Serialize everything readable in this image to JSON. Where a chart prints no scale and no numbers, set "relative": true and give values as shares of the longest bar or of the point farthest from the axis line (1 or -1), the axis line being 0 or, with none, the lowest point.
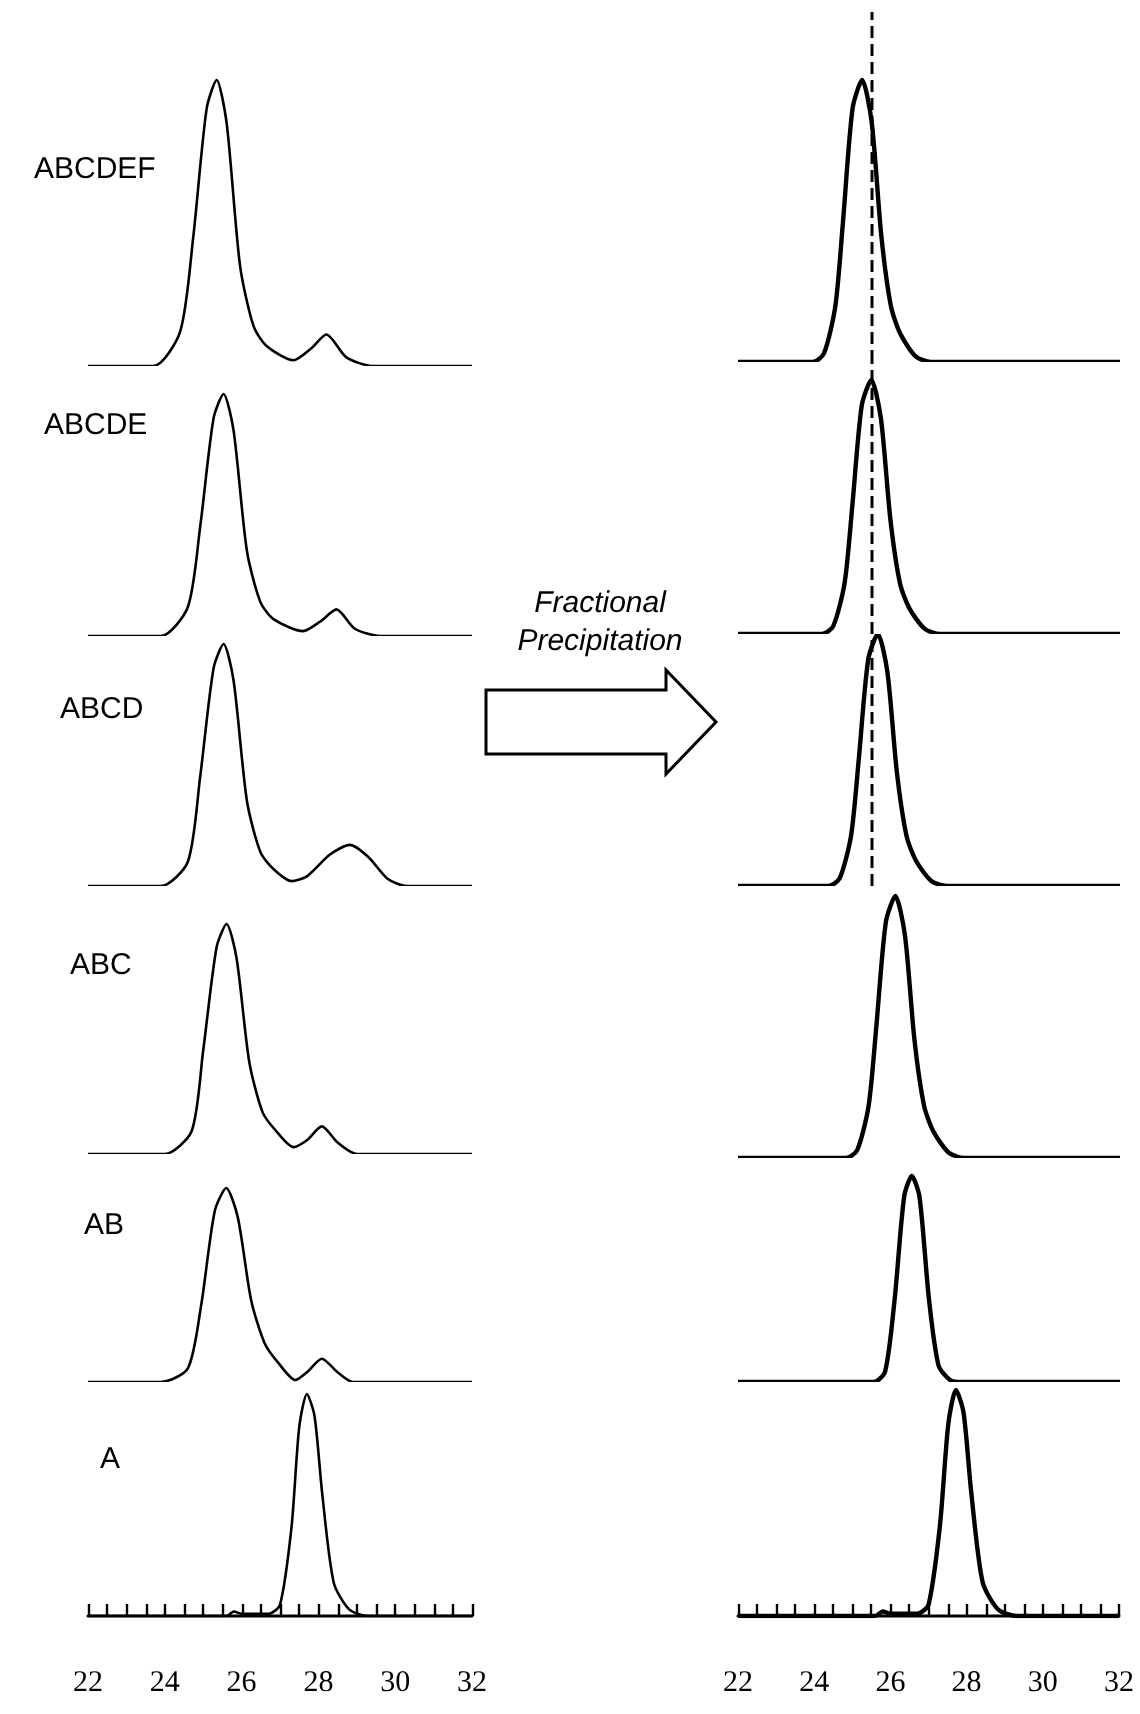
{
  "chart_data": [
    {
      "type": "line",
      "title": "ABCDEF",
      "relative": true,
      "xlim": [
        22,
        32
      ],
      "tick_labels": false,
      "color": "#000000",
      "x": [
        22,
        23.7,
        24.4,
        24.74,
        25.09,
        25.35,
        25.61,
        25.96,
        26.31,
        26.65,
        27.35,
        27.8,
        28.21,
        28.73,
        29.43,
        32
      ],
      "values": [
        0,
        0,
        0.12,
        0.45,
        0.9,
        1,
        0.85,
        0.35,
        0.14,
        0.07,
        0.02,
        0.06,
        0.11,
        0.03,
        0,
        0
      ]
    },
    {
      "type": "line",
      "title": "ABCDE",
      "relative": true,
      "xlim": [
        22,
        32
      ],
      "tick_labels": false,
      "color": "#000000",
      "x": [
        22,
        23.9,
        24.6,
        24.92,
        25.27,
        25.53,
        25.79,
        26.14,
        26.49,
        26.83,
        27.6,
        28.05,
        28.47,
        28.95,
        29.6,
        32
      ],
      "values": [
        0,
        0,
        0.12,
        0.45,
        0.9,
        1,
        0.85,
        0.35,
        0.14,
        0.07,
        0.02,
        0.06,
        0.11,
        0.03,
        0,
        0
      ]
    },
    {
      "type": "line",
      "title": "ABCD",
      "relative": true,
      "xlim": [
        22,
        32
      ],
      "tick_labels": false,
      "color": "#000000",
      "x": [
        22,
        23.9,
        24.6,
        24.92,
        25.27,
        25.53,
        25.79,
        26.14,
        26.49,
        26.83,
        27.3,
        27.7,
        28.3,
        28.82,
        29.3,
        29.8,
        30.3,
        32
      ],
      "values": [
        0,
        0,
        0.1,
        0.45,
        0.9,
        1,
        0.85,
        0.35,
        0.14,
        0.07,
        0.02,
        0.04,
        0.13,
        0.17,
        0.12,
        0.03,
        0,
        0
      ]
    },
    {
      "type": "line",
      "title": "ABC",
      "relative": true,
      "xlim": [
        22,
        32
      ],
      "tick_labels": false,
      "color": "#000000",
      "x": [
        22,
        24,
        24.7,
        25,
        25.35,
        25.61,
        25.87,
        26.2,
        26.55,
        26.9,
        27.35,
        27.7,
        28.09,
        28.5,
        29,
        32
      ],
      "values": [
        0,
        0,
        0.1,
        0.45,
        0.9,
        1,
        0.85,
        0.4,
        0.18,
        0.1,
        0.03,
        0.06,
        0.12,
        0.05,
        0,
        0
      ]
    },
    {
      "type": "line",
      "title": "AB",
      "relative": true,
      "xlim": [
        22,
        32
      ],
      "tick_labels": false,
      "color": "#000000",
      "x": [
        22,
        23.9,
        24.6,
        24.95,
        25.3,
        25.6,
        25.9,
        26.25,
        26.6,
        26.95,
        27.4,
        27.7,
        28.09,
        28.5,
        28.9,
        32
      ],
      "values": [
        0,
        0,
        0.07,
        0.4,
        0.88,
        1,
        0.85,
        0.42,
        0.2,
        0.1,
        0.01,
        0.05,
        0.12,
        0.05,
        0,
        0
      ]
    },
    {
      "type": "line",
      "title": "A",
      "relative": true,
      "xlim": [
        22,
        32
      ],
      "tick_labels": "x",
      "color": "#000000",
      "x": [
        22,
        25.6,
        25.8,
        26,
        26.7,
        27,
        27.3,
        27.5,
        27.7,
        27.9,
        28.1,
        28.4,
        28.8,
        29.3,
        32
      ],
      "values": [
        0,
        0,
        0.02,
        0.01,
        0.01,
        0.05,
        0.4,
        0.85,
        1,
        0.9,
        0.55,
        0.15,
        0.03,
        0,
        0
      ],
      "xticks": [
        22,
        {
          "value": 22.5,
          "label": null
        },
        {
          "value": 23,
          "label": null
        },
        {
          "value": 23.5,
          "label": null
        },
        24,
        {
          "value": 24.5,
          "label": null
        },
        {
          "value": 25,
          "label": null
        },
        {
          "value": 25.5,
          "label": null
        },
        26,
        {
          "value": 26.5,
          "label": null
        },
        {
          "value": 27,
          "label": null
        },
        {
          "value": 27.5,
          "label": null
        },
        28,
        {
          "value": 28.5,
          "label": null
        },
        {
          "value": 29,
          "label": null
        },
        {
          "value": 29.5,
          "label": null
        },
        30,
        {
          "value": 30.5,
          "label": null
        },
        {
          "value": 31,
          "label": null
        },
        {
          "value": 31.5,
          "label": null
        },
        32
      ]
    },
    {
      "type": "line",
      "relative": true,
      "xlim": [
        22,
        32
      ],
      "tick_labels": false,
      "color": "#000000",
      "x": [
        22,
        23.95,
        24.25,
        24.55,
        24.75,
        25,
        25.25,
        25.5,
        25.75,
        26,
        26.25,
        26.65,
        27.05,
        32
      ],
      "values": [
        0,
        0,
        0.03,
        0.2,
        0.5,
        0.9,
        1,
        0.85,
        0.45,
        0.2,
        0.1,
        0.02,
        0,
        0
      ],
      "ref_lines": [
        {
          "axis": "x",
          "value": 25.5,
          "line_style": "dashed",
          "color": "#000000"
        }
      ]
    },
    {
      "type": "line",
      "relative": true,
      "xlim": [
        22,
        32
      ],
      "tick_labels": false,
      "color": "#000000",
      "x": [
        22,
        24.19,
        24.49,
        24.79,
        24.99,
        25.24,
        25.49,
        25.74,
        25.99,
        26.24,
        26.49,
        26.89,
        27.29,
        32
      ],
      "values": [
        0,
        0,
        0.03,
        0.2,
        0.5,
        0.9,
        1,
        0.85,
        0.45,
        0.2,
        0.1,
        0.02,
        0,
        0
      ],
      "ref_lines": [
        {
          "axis": "x",
          "value": 25.5,
          "line_style": "dashed",
          "color": "#000000"
        }
      ]
    },
    {
      "type": "line",
      "relative": true,
      "xlim": [
        22,
        32
      ],
      "tick_labels": false,
      "color": "#000000",
      "x": [
        22,
        24.36,
        24.66,
        24.96,
        25.16,
        25.41,
        25.66,
        25.91,
        26.16,
        26.41,
        26.66,
        27.06,
        27.46,
        32
      ],
      "values": [
        0,
        0,
        0.03,
        0.2,
        0.5,
        0.9,
        1,
        0.85,
        0.45,
        0.2,
        0.1,
        0.02,
        0,
        0
      ],
      "ref_lines": [
        {
          "axis": "x",
          "value": 25.5,
          "line_style": "dashed",
          "color": "#000000"
        }
      ]
    },
    {
      "type": "line",
      "relative": true,
      "xlim": [
        22,
        32
      ],
      "tick_labels": false,
      "color": "#000000",
      "x": [
        22,
        24.82,
        25.12,
        25.42,
        25.62,
        25.87,
        26.12,
        26.37,
        26.62,
        26.87,
        27.12,
        27.52,
        27.92,
        32
      ],
      "values": [
        0,
        0,
        0.03,
        0.2,
        0.5,
        0.9,
        1,
        0.85,
        0.45,
        0.2,
        0.1,
        0.02,
        0,
        0
      ]
    },
    {
      "type": "line",
      "relative": true,
      "xlim": [
        22,
        32
      ],
      "tick_labels": false,
      "color": "#000000",
      "x": [
        22,
        25.55,
        25.85,
        26.1,
        26.35,
        26.55,
        26.75,
        27,
        27.25,
        27.55,
        27.85,
        32
      ],
      "values": [
        0,
        0,
        0.05,
        0.4,
        0.9,
        1,
        0.9,
        0.4,
        0.08,
        0.01,
        0,
        0
      ]
    },
    {
      "type": "line",
      "relative": true,
      "xlim": [
        22,
        32
      ],
      "tick_labels": "x",
      "color": "#000000",
      "x": [
        22,
        25.6,
        25.8,
        26,
        26.7,
        27,
        27.3,
        27.52,
        27.72,
        27.92,
        28.12,
        28.42,
        28.82,
        29.32,
        32
      ],
      "values": [
        0,
        0,
        0.02,
        0.01,
        0.01,
        0.05,
        0.4,
        0.85,
        1,
        0.9,
        0.55,
        0.15,
        0.03,
        0,
        0
      ],
      "xticks": [
        22,
        {
          "value": 22.5,
          "label": null
        },
        {
          "value": 23,
          "label": null
        },
        {
          "value": 23.5,
          "label": null
        },
        24,
        {
          "value": 24.5,
          "label": null
        },
        {
          "value": 25,
          "label": null
        },
        {
          "value": 25.5,
          "label": null
        },
        26,
        {
          "value": 26.5,
          "label": null
        },
        {
          "value": 27,
          "label": null
        },
        {
          "value": 27.5,
          "label": null
        },
        28,
        {
          "value": 28.5,
          "label": null
        },
        {
          "value": 29,
          "label": null
        },
        {
          "value": 29.5,
          "label": null
        },
        30,
        {
          "value": 30.5,
          "label": null
        },
        {
          "value": 31,
          "label": null
        },
        {
          "value": 31.5,
          "label": null
        },
        32
      ]
    },
    {
      "type": "other",
      "annotations": [
        "Fractional Precipitation"
      ]
    }
  ]
}
